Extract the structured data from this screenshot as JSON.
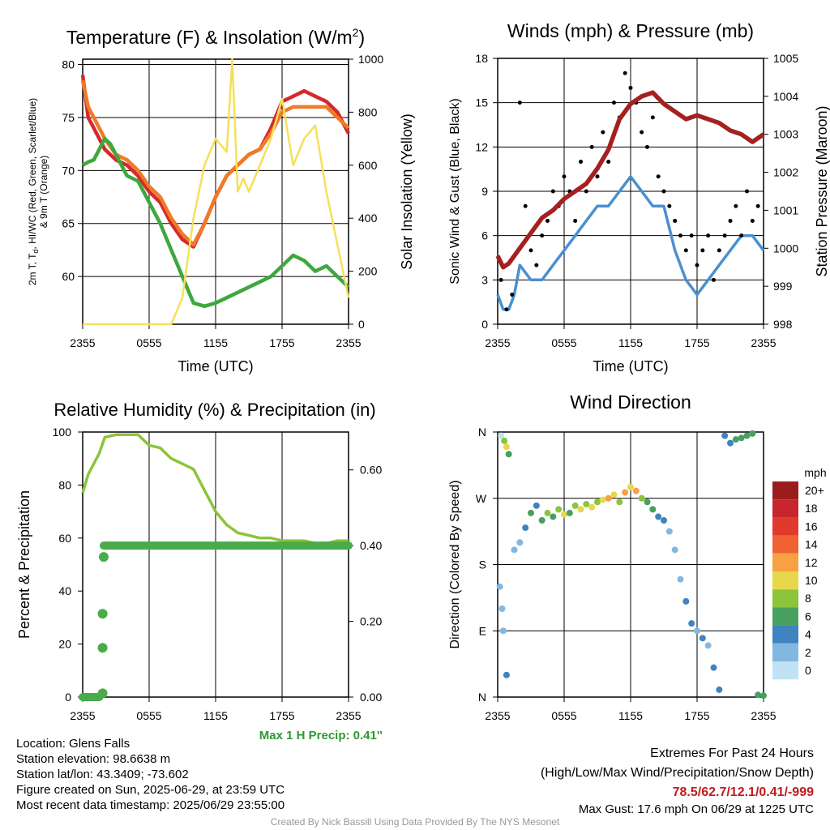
{
  "chart_data": [
    {
      "type": "line",
      "title": "Temperature (F) & Insolation (W/m",
      "title_sup": "2",
      "title_end": ")",
      "xlabel": "Time (UTC)",
      "ylabel_left_lines": [
        "2m T, T",
        "d",
        ", HI/WC (Red, Green, Scarlet/Blue)",
        "& 9m T (Orange)"
      ],
      "ylabel_right": "Solar Insolation (Yellow)",
      "x_ticks": [
        "2355",
        "0555",
        "1155",
        "1755",
        "2355"
      ],
      "ylim_left": [
        55.5,
        80.5
      ],
      "ylim_right": [
        0,
        1000
      ],
      "yticks_left": [
        60,
        65,
        70,
        75,
        80
      ],
      "yticks_right": [
        0,
        200,
        400,
        600,
        800,
        1000
      ],
      "series": [
        {
          "axis": "left",
          "color": "#d42a2a",
          "x": [
            0,
            0.5,
            1,
            1.5,
            2,
            3,
            4,
            5,
            6,
            7,
            8,
            9,
            10,
            11,
            12,
            13,
            14,
            15,
            16,
            17,
            18,
            19,
            20,
            21,
            22,
            23,
            24
          ],
          "y": [
            79,
            75,
            74,
            73,
            72,
            71,
            70.5,
            69.5,
            68,
            67,
            65,
            63.5,
            62.8,
            65,
            67.5,
            69.5,
            70.5,
            71.5,
            72,
            74,
            76.5,
            77,
            77.5,
            77,
            76.5,
            75.5,
            73.5
          ]
        },
        {
          "axis": "left",
          "color": "#f07a28",
          "x": [
            0,
            0.5,
            1,
            1.5,
            2,
            3,
            4,
            5,
            6,
            7,
            8,
            9,
            10,
            11,
            12,
            13,
            14,
            15,
            16,
            17,
            18,
            19,
            20,
            21,
            22,
            23,
            24
          ],
          "y": [
            78.5,
            76,
            75,
            74,
            73,
            71.5,
            71,
            70,
            68.5,
            67.5,
            65.5,
            64,
            63,
            65,
            67.5,
            69.5,
            70.5,
            71.5,
            72,
            73.5,
            75.5,
            76,
            76,
            76,
            76,
            75,
            74
          ]
        },
        {
          "axis": "left",
          "color": "#3ea83e",
          "x": [
            0,
            0.5,
            1,
            1.5,
            2,
            2.5,
            3,
            4,
            5,
            6,
            7,
            8,
            9,
            10,
            11,
            12,
            13,
            14,
            15,
            16,
            17,
            18,
            19,
            20,
            21,
            22,
            23,
            24
          ],
          "y": [
            70.5,
            70.8,
            71,
            72,
            73,
            72.5,
            71.5,
            69.5,
            69,
            67,
            65,
            62.5,
            60,
            57.5,
            57.2,
            57.5,
            58,
            58.5,
            59,
            59.5,
            60,
            61,
            62,
            61.5,
            60.5,
            61,
            60,
            59
          ]
        },
        {
          "axis": "right",
          "color": "#f5e05a",
          "x": [
            0,
            4,
            8,
            9,
            10,
            11,
            12,
            13,
            13.5,
            14,
            14.5,
            15,
            16,
            17,
            18,
            19,
            20,
            21,
            22,
            23,
            24
          ],
          "y": [
            0,
            0,
            0,
            100,
            400,
            600,
            700,
            650,
            1000,
            500,
            550,
            500,
            600,
            700,
            850,
            600,
            700,
            750,
            500,
            300,
            100
          ]
        }
      ]
    },
    {
      "type": "scatter",
      "title": "Winds (mph) & Pressure (mb)",
      "xlabel": "Time (UTC)",
      "ylabel_left": "Sonic Wind & Gust (Blue, Black)",
      "ylabel_right": "Station Pressure (Maroon)",
      "x_ticks": [
        "2355",
        "0555",
        "1155",
        "1755",
        "2355"
      ],
      "ylim_left": [
        0,
        18
      ],
      "ylim_right": [
        998,
        1005
      ],
      "yticks_left": [
        0,
        3,
        6,
        9,
        12,
        15,
        18
      ],
      "yticks_right": [
        998,
        999,
        1000,
        1001,
        1002,
        1003,
        1004,
        1005
      ],
      "series": [
        {
          "name": "pressure",
          "axis": "right",
          "color": "#a52020",
          "x": [
            0,
            0.5,
            1,
            2,
            3,
            4,
            5,
            6,
            7,
            8,
            9,
            10,
            10.5,
            11,
            12,
            13,
            14,
            15,
            16,
            17,
            18,
            19,
            20,
            21,
            22,
            23,
            24
          ],
          "y": [
            999.8,
            999.5,
            999.6,
            1000,
            1000.4,
            1000.8,
            1001,
            1001.3,
            1001.5,
            1001.7,
            1002.1,
            1002.6,
            1003,
            1003.4,
            1003.8,
            1004,
            1004.1,
            1003.8,
            1003.6,
            1003.4,
            1003.5,
            1003.4,
            1003.3,
            1003.1,
            1003,
            1002.8,
            1003
          ]
        },
        {
          "name": "wind",
          "axis": "left",
          "color": "#4a90cf",
          "x": [
            0,
            0.5,
            1,
            1.5,
            2,
            3,
            4,
            5,
            6,
            7,
            8,
            9,
            10,
            11,
            12,
            13,
            14,
            15,
            16,
            17,
            18,
            19,
            20,
            21,
            22,
            23,
            24
          ],
          "y": [
            2,
            1,
            1,
            2,
            4,
            3,
            3,
            4,
            5,
            6,
            7,
            8,
            8,
            9,
            10,
            9,
            8,
            8,
            5,
            3,
            2,
            3,
            4,
            5,
            6,
            6,
            5
          ]
        },
        {
          "name": "gust",
          "axis": "left",
          "color": "#000000",
          "x": [
            0.3,
            0.8,
            1.3,
            2,
            2.5,
            3,
            3.5,
            4,
            4.5,
            5,
            5.5,
            6,
            6.5,
            7,
            7.5,
            8,
            8.5,
            9,
            9.5,
            10,
            10.5,
            11,
            11.5,
            12,
            12.5,
            13,
            13.5,
            14,
            14.5,
            15,
            15.5,
            16,
            16.5,
            17,
            17.5,
            18,
            18.5,
            19,
            19.5,
            20,
            20.5,
            21,
            21.5,
            22,
            22.5,
            23,
            23.5
          ],
          "y": [
            3,
            1,
            2,
            15,
            8,
            5,
            4,
            6,
            7,
            9,
            8,
            10,
            9,
            7,
            11,
            9,
            12,
            10,
            13,
            11,
            15,
            14,
            17,
            16,
            15,
            13,
            12,
            14,
            10,
            9,
            8,
            7,
            6,
            5,
            6,
            4,
            5,
            6,
            3,
            5,
            6,
            7,
            8,
            6,
            9,
            7,
            8
          ]
        }
      ]
    },
    {
      "type": "line",
      "title": "Relative Humidity (%) & Precipitation (in)",
      "ylabel_left": "Percent & Precipitation",
      "x_ticks": [
        "2355",
        "0555",
        "1155",
        "1755",
        "2355"
      ],
      "ylim_left": [
        0,
        100
      ],
      "ylim_right": [
        0,
        0.7
      ],
      "yticks_left": [
        0,
        20,
        40,
        60,
        80,
        100
      ],
      "yticks_right": [
        0.0,
        0.2,
        0.4,
        0.6
      ],
      "ytick_labels_right": [
        "0.00",
        "0.20",
        "0.40",
        "0.60"
      ],
      "series": [
        {
          "name": "rh",
          "axis": "left",
          "color": "#8cc43c",
          "x": [
            0,
            0.5,
            1,
            1.5,
            2,
            3,
            4,
            5,
            6,
            7,
            8,
            9,
            10,
            11,
            12,
            13,
            14,
            15,
            16,
            17,
            18,
            19,
            20,
            21,
            22,
            23,
            24
          ],
          "y": [
            77,
            84,
            88,
            92,
            98,
            99,
            99,
            99,
            95,
            94,
            90,
            88,
            86,
            78,
            70,
            65,
            62,
            61,
            60,
            60,
            59,
            59,
            59,
            58,
            58,
            59,
            59
          ]
        },
        {
          "name": "precip",
          "axis": "right",
          "color": "#48ad48",
          "x": [
            0,
            0.5,
            1,
            1.5,
            2,
            2.5
          ],
          "y": [
            0,
            0,
            0,
            0.01,
            0.13,
            0.37
          ]
        }
      ],
      "precip_flat_value": 0.4,
      "precip_dots": [
        {
          "x": 1.8,
          "y": 0.01
        },
        {
          "x": 1.8,
          "y": 0.13
        },
        {
          "x": 1.8,
          "y": 0.22
        },
        {
          "x": 1.9,
          "y": 0.37
        }
      ],
      "annotation": "Max 1 H Precip: 0.41''"
    },
    {
      "type": "scatter",
      "title": "Wind Direction",
      "ylabel_left": "Direction (Colored By Speed)",
      "x_ticks": [
        "2355",
        "0555",
        "1155",
        "1755",
        "2355"
      ],
      "y_ticks": [
        "N",
        "E",
        "S",
        "W",
        "N"
      ],
      "ylim": [
        0,
        360
      ],
      "legend_title": "mph",
      "legend_labels": [
        "20+",
        "18",
        "16",
        "14",
        "12",
        "10",
        "8",
        "6",
        "4",
        "2",
        "0"
      ],
      "legend_colors": [
        "#9b1c1c",
        "#c8262d",
        "#e03a2f",
        "#ef6231",
        "#f7a044",
        "#e6d84a",
        "#8cc43c",
        "#48a060",
        "#3f83bf",
        "#82b8e0",
        "#bfe3f5"
      ],
      "points": [
        {
          "x": 0.3,
          "dir": 355,
          "spd": 0
        },
        {
          "x": 0.6,
          "dir": 348,
          "spd": 8
        },
        {
          "x": 0.8,
          "dir": 340,
          "spd": 10
        },
        {
          "x": 1.0,
          "dir": 330,
          "spd": 6
        },
        {
          "x": 0.2,
          "dir": 150,
          "spd": 1
        },
        {
          "x": 0.4,
          "dir": 120,
          "spd": 2
        },
        {
          "x": 0.5,
          "dir": 90,
          "spd": 1
        },
        {
          "x": 0.8,
          "dir": 30,
          "spd": 4
        },
        {
          "x": 1.5,
          "dir": 200,
          "spd": 1
        },
        {
          "x": 2,
          "dir": 210,
          "spd": 2
        },
        {
          "x": 2.5,
          "dir": 230,
          "spd": 4
        },
        {
          "x": 3,
          "dir": 250,
          "spd": 6
        },
        {
          "x": 3.5,
          "dir": 260,
          "spd": 4
        },
        {
          "x": 4,
          "dir": 240,
          "spd": 6
        },
        {
          "x": 4.5,
          "dir": 250,
          "spd": 8
        },
        {
          "x": 5,
          "dir": 245,
          "spd": 6
        },
        {
          "x": 5.5,
          "dir": 255,
          "spd": 8
        },
        {
          "x": 6,
          "dir": 248,
          "spd": 10
        },
        {
          "x": 6.5,
          "dir": 250,
          "spd": 6
        },
        {
          "x": 7,
          "dir": 260,
          "spd": 8
        },
        {
          "x": 7.5,
          "dir": 255,
          "spd": 10
        },
        {
          "x": 8,
          "dir": 262,
          "spd": 8
        },
        {
          "x": 8.5,
          "dir": 258,
          "spd": 10
        },
        {
          "x": 9,
          "dir": 265,
          "spd": 8
        },
        {
          "x": 9.5,
          "dir": 268,
          "spd": 10
        },
        {
          "x": 10,
          "dir": 270,
          "spd": 12
        },
        {
          "x": 10.5,
          "dir": 275,
          "spd": 10
        },
        {
          "x": 11,
          "dir": 265,
          "spd": 8
        },
        {
          "x": 11.5,
          "dir": 278,
          "spd": 12
        },
        {
          "x": 12,
          "dir": 285,
          "spd": 10
        },
        {
          "x": 12.5,
          "dir": 280,
          "spd": 12
        },
        {
          "x": 13,
          "dir": 270,
          "spd": 8
        },
        {
          "x": 13.5,
          "dir": 265,
          "spd": 6
        },
        {
          "x": 14,
          "dir": 255,
          "spd": 6
        },
        {
          "x": 14.5,
          "dir": 245,
          "spd": 4
        },
        {
          "x": 15,
          "dir": 240,
          "spd": 4
        },
        {
          "x": 15.5,
          "dir": 225,
          "spd": 2
        },
        {
          "x": 16,
          "dir": 200,
          "spd": 2
        },
        {
          "x": 16.5,
          "dir": 160,
          "spd": 2
        },
        {
          "x": 17,
          "dir": 130,
          "spd": 4
        },
        {
          "x": 17.5,
          "dir": 100,
          "spd": 4
        },
        {
          "x": 18,
          "dir": 90,
          "spd": 2
        },
        {
          "x": 18.5,
          "dir": 80,
          "spd": 4
        },
        {
          "x": 19,
          "dir": 70,
          "spd": 2
        },
        {
          "x": 19.5,
          "dir": 40,
          "spd": 4
        },
        {
          "x": 20,
          "dir": 10,
          "spd": 4
        },
        {
          "x": 20.5,
          "dir": 355,
          "spd": 4
        },
        {
          "x": 21,
          "dir": 345,
          "spd": 4
        },
        {
          "x": 21.5,
          "dir": 350,
          "spd": 6
        },
        {
          "x": 22,
          "dir": 352,
          "spd": 6
        },
        {
          "x": 22.5,
          "dir": 355,
          "spd": 6
        },
        {
          "x": 23,
          "dir": 358,
          "spd": 6
        },
        {
          "x": 23.5,
          "dir": 3,
          "spd": 6
        },
        {
          "x": 24,
          "dir": 2,
          "spd": 6
        }
      ]
    }
  ],
  "info": {
    "location": "Location: Glens Falls",
    "elevation": "Station elevation: 98.6638 m",
    "latlon": "Station lat/lon: 43.3409; -73.602",
    "created": "Figure created on Sun, 2025-06-29, at 23:59 UTC",
    "recent": "Most recent data timestamp: 2025/06/29 23:55:00"
  },
  "extremes": {
    "title": "Extremes For Past 24 Hours",
    "subtitle": "(High/Low/Max Wind/Precipitation/Snow Depth)",
    "values": "78.5/62.7/12.1/0.41/-999",
    "gust": "Max Gust: 17.6 mph On 06/29 at 1225 UTC"
  },
  "credit": "Created By Nick Bassill Using Data Provided By The NYS Mesonet",
  "colors": {
    "grid": "#000000",
    "precip_annotation": "#2e9a2e",
    "extreme_values": "#c01c1c"
  }
}
